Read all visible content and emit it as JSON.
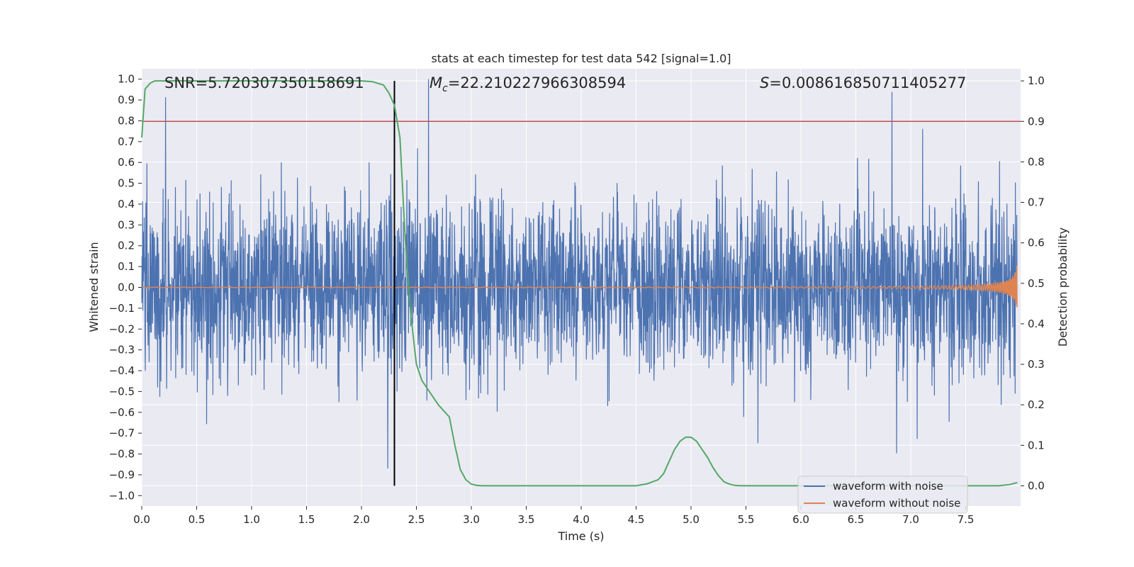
{
  "chart_data": {
    "type": "line",
    "title": "stats at each timestep for test data 542 [signal=1.0]",
    "xlabel": "Time (s)",
    "ylabel": "Whitened strain",
    "y2label": "Detection probability",
    "xlim": [
      0.0,
      8.0
    ],
    "ylim": [
      -1.05,
      1.05
    ],
    "y2lim": [
      -0.05,
      1.03
    ],
    "xticks": [
      "0.0",
      "0.5",
      "1.0",
      "1.5",
      "2.0",
      "2.5",
      "3.0",
      "3.5",
      "4.0",
      "4.5",
      "5.0",
      "5.5",
      "6.0",
      "6.5",
      "7.0",
      "7.5"
    ],
    "yticks": [
      "1.0",
      "0.9",
      "0.8",
      "0.7",
      "0.6",
      "0.5",
      "0.4",
      "0.3",
      "0.2",
      "0.1",
      "0.0",
      "-0.1",
      "-0.2",
      "-0.3",
      "-0.4",
      "-0.5",
      "-0.6",
      "-0.7",
      "-0.8",
      "-0.9",
      "-1.0"
    ],
    "y2ticks": [
      "1.0",
      "0.9",
      "0.8",
      "0.7",
      "0.6",
      "0.5",
      "0.4",
      "0.3",
      "0.2",
      "0.1",
      "0.0"
    ],
    "stats": {
      "snr": "SNR=5.720307350158691",
      "mc_var": "M",
      "mc_sub": "c",
      "mc_val": "=22.210227966308594",
      "s_var": "S",
      "s_val": "=0.008616850711405277"
    },
    "threshold": {
      "value": 0.9,
      "axis": "right",
      "color": "#c44e52"
    },
    "detection_time": {
      "value": 2.3,
      "color": "#000000"
    },
    "series": [
      {
        "name": "waveform with noise",
        "color": "#4c72b0",
        "kind": "noisy strain",
        "seed": 542
      },
      {
        "name": "waveform without noise",
        "color": "#dd8452",
        "kind": "chirp",
        "t_merge": 8.0
      },
      {
        "name": "detection probability",
        "color": "#55a868",
        "axis": "right",
        "x": [
          0.0,
          0.03,
          0.08,
          0.12,
          0.2,
          0.5,
          1.0,
          1.5,
          2.0,
          2.1,
          2.2,
          2.25,
          2.3,
          2.35,
          2.4,
          2.45,
          2.5,
          2.55,
          2.6,
          2.7,
          2.8,
          2.85,
          2.9,
          2.95,
          3.0,
          3.05,
          3.1,
          3.3,
          4.0,
          4.5,
          4.6,
          4.7,
          4.75,
          4.8,
          4.85,
          4.9,
          4.95,
          5.0,
          5.05,
          5.1,
          5.15,
          5.2,
          5.25,
          5.3,
          5.35,
          5.4,
          5.45,
          5.5,
          6.0,
          7.0,
          7.8,
          7.9,
          7.97
        ],
        "y": [
          0.86,
          0.98,
          0.995,
          1.0,
          1.0,
          1.0,
          1.0,
          1.0,
          1.0,
          0.998,
          0.99,
          0.97,
          0.94,
          0.86,
          0.6,
          0.42,
          0.3,
          0.26,
          0.24,
          0.2,
          0.17,
          0.1,
          0.04,
          0.015,
          0.004,
          0.001,
          0.0,
          0.0,
          0.0,
          0.0,
          0.005,
          0.015,
          0.03,
          0.06,
          0.09,
          0.11,
          0.12,
          0.12,
          0.11,
          0.09,
          0.07,
          0.045,
          0.025,
          0.01,
          0.004,
          0.001,
          0.0,
          0.0,
          0.0,
          0.0,
          0.0,
          0.003,
          0.008
        ]
      }
    ],
    "legend": {
      "position": "lower-right",
      "entries": [
        {
          "label": "waveform with noise",
          "color": "#4c72b0"
        },
        {
          "label": "waveform without noise",
          "color": "#dd8452"
        }
      ]
    }
  }
}
